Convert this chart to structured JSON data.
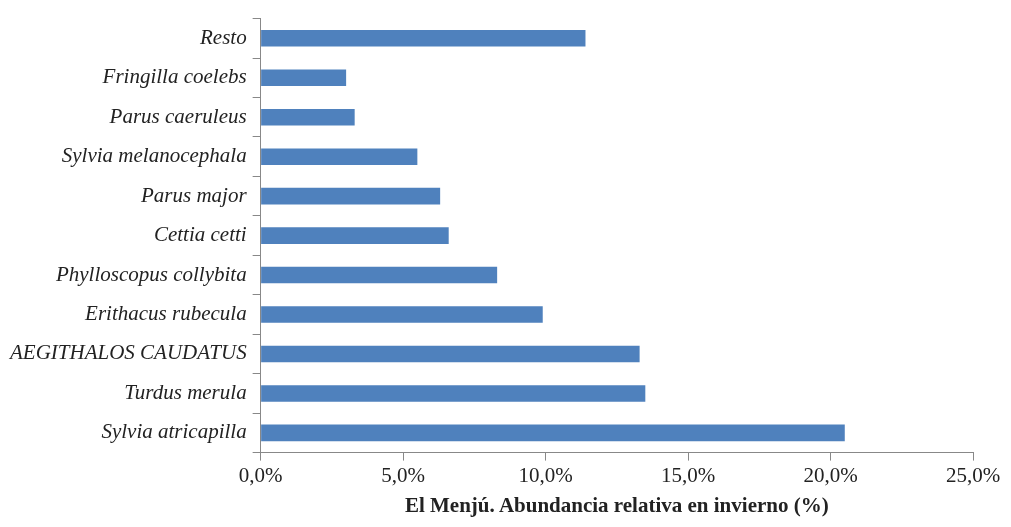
{
  "chart_data": {
    "type": "bar",
    "orientation": "horizontal",
    "xlabel": "El Menjú. Abundancia relativa en invierno (%)",
    "categories": [
      "Resto",
      "Fringilla coelebs",
      "Parus caeruleus",
      "Sylvia melanocephala",
      "Parus major",
      "Cettia cetti",
      "Phylloscopus collybita",
      "Erithacus rubecula",
      "AEGITHALOS CAUDATUS",
      "Turdus merula",
      "Sylvia atricapilla"
    ],
    "values": [
      11.4,
      3.0,
      3.3,
      5.5,
      6.3,
      6.6,
      8.3,
      9.9,
      13.3,
      13.5,
      20.5
    ],
    "color": "#4f81bd",
    "xlim": [
      0,
      25
    ],
    "xticks": [
      {
        "value": 0,
        "label": "0,0%"
      },
      {
        "value": 5,
        "label": "5,0%"
      },
      {
        "value": 10,
        "label": "10,0%"
      },
      {
        "value": 15,
        "label": "15,0%"
      },
      {
        "value": 20,
        "label": "20,0%"
      },
      {
        "value": 25,
        "label": "25,0%"
      }
    ],
    "grid": false,
    "legend": false
  }
}
